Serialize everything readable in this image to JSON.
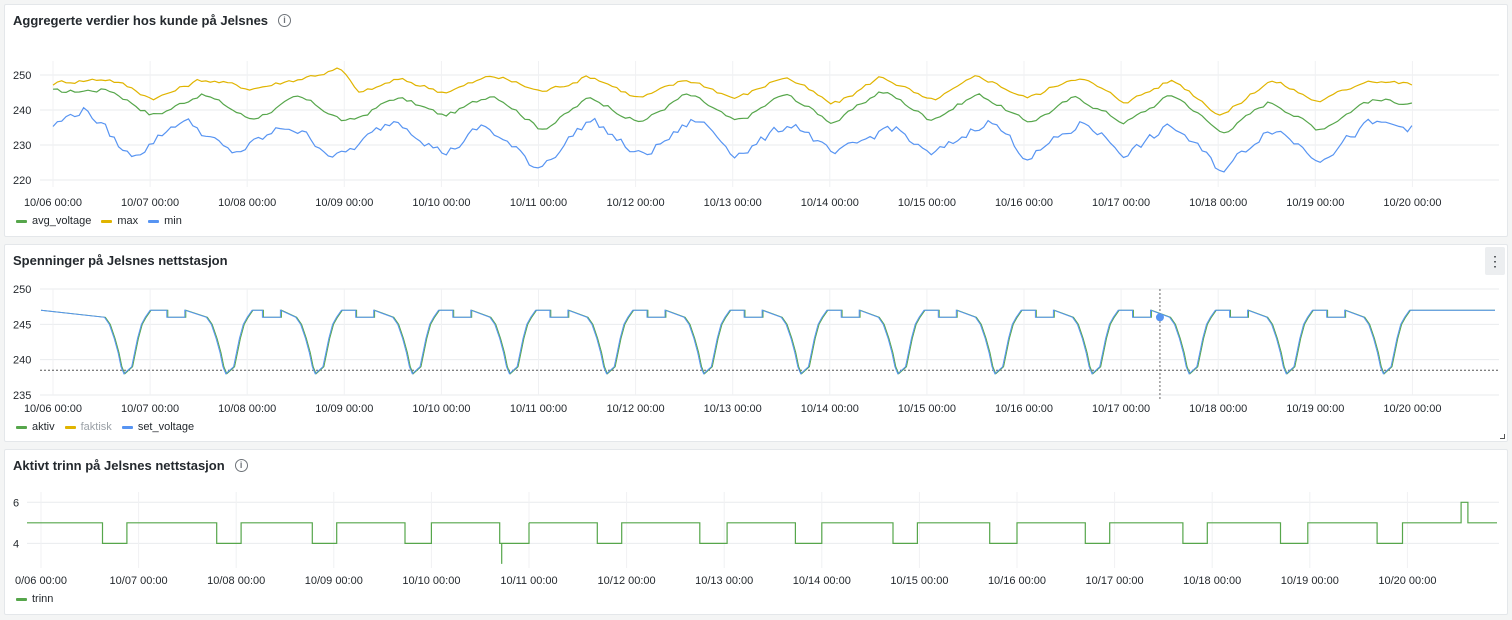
{
  "panels": {
    "p1": {
      "title": "Aggregerte verdier hos kunde på Jelsnes",
      "legend": [
        {
          "label": "avg_voltage",
          "color": "#56a64b"
        },
        {
          "label": "max",
          "color": "#e0b400"
        },
        {
          "label": "min",
          "color": "#5794f2"
        }
      ]
    },
    "p2": {
      "title": "Spenninger på Jelsnes nettstasjon",
      "menu_icon": "⋮",
      "legend": [
        {
          "label": "aktiv",
          "color": "#56a64b"
        },
        {
          "label": "faktisk",
          "color": "#e0b400",
          "dimmed": true
        },
        {
          "label": "set_voltage",
          "color": "#5794f2"
        }
      ]
    },
    "p3": {
      "title": "Aktivt trinn på Jelsnes nettstasjon",
      "legend": [
        {
          "label": "trinn",
          "color": "#56a64b"
        }
      ]
    }
  },
  "chart_data": [
    {
      "type": "line",
      "title": "Aggregerte verdier hos kunde på Jelsnes",
      "x_ticks": [
        "10/06 00:00",
        "10/07 00:00",
        "10/08 00:00",
        "10/09 00:00",
        "10/10 00:00",
        "10/11 00:00",
        "10/12 00:00",
        "10/13 00:00",
        "10/14 00:00",
        "10/15 00:00",
        "10/16 00:00",
        "10/17 00:00",
        "10/18 00:00",
        "10/19 00:00",
        "10/20 00:00"
      ],
      "y_ticks": [
        220,
        230,
        240,
        250
      ],
      "ylim": [
        218,
        254
      ],
      "legend_placement": "bottom-left",
      "series": [
        {
          "name": "avg_voltage",
          "color": "#56a64b",
          "day_values": [
            [
              0,
              245
            ],
            [
              0.55,
              246
            ],
            [
              1.0,
              238
            ],
            [
              1.5,
              245
            ],
            [
              2.0,
              237
            ],
            [
              2.5,
              244
            ],
            [
              3.0,
              236
            ],
            [
              3.5,
              244
            ],
            [
              4.0,
              238
            ],
            [
              4.5,
              245
            ],
            [
              5.0,
              234
            ],
            [
              5.5,
              244
            ],
            [
              6.0,
              236
            ],
            [
              6.5,
              245
            ],
            [
              7.0,
              236
            ],
            [
              7.5,
              245
            ],
            [
              8.0,
              236
            ],
            [
              8.5,
              246
            ],
            [
              9.0,
              237
            ],
            [
              9.5,
              245
            ],
            [
              10.0,
              236
            ],
            [
              10.5,
              244
            ],
            [
              11.0,
              236
            ],
            [
              11.5,
              245
            ],
            [
              12.0,
              233
            ],
            [
              12.5,
              243
            ],
            [
              13.0,
              234
            ],
            [
              13.5,
              243
            ],
            [
              14.0,
              242
            ]
          ]
        },
        {
          "name": "max",
          "color": "#e0b400",
          "day_values": [
            [
              0,
              248
            ],
            [
              0.55,
              249
            ],
            [
              1.0,
              243
            ],
            [
              1.5,
              249
            ],
            [
              2.0,
              246
            ],
            [
              2.5,
              249
            ],
            [
              2.95,
              252
            ],
            [
              3.1,
              244
            ],
            [
              3.5,
              249
            ],
            [
              4.0,
              245
            ],
            [
              4.5,
              250
            ],
            [
              5.0,
              245
            ],
            [
              5.5,
              250
            ],
            [
              6.0,
              243
            ],
            [
              6.5,
              249
            ],
            [
              7.0,
              243
            ],
            [
              7.5,
              250
            ],
            [
              8.0,
              241
            ],
            [
              8.5,
              250
            ],
            [
              9.0,
              242
            ],
            [
              9.5,
              250
            ],
            [
              10.0,
              243
            ],
            [
              10.5,
              250
            ],
            [
              11.0,
              242
            ],
            [
              11.5,
              249
            ],
            [
              12.0,
              238
            ],
            [
              12.5,
              249
            ],
            [
              13.0,
              242
            ],
            [
              13.5,
              249
            ],
            [
              14.0,
              247
            ]
          ]
        },
        {
          "name": "min",
          "color": "#5794f2",
          "day_values": [
            [
              0,
              236
            ],
            [
              0.3,
              241
            ],
            [
              0.75,
              226
            ],
            [
              1.3,
              238
            ],
            [
              1.8,
              227
            ],
            [
              2.4,
              236
            ],
            [
              2.9,
              226
            ],
            [
              3.5,
              238
            ],
            [
              4.0,
              227
            ],
            [
              4.4,
              236
            ],
            [
              4.95,
              223
            ],
            [
              5.5,
              238
            ],
            [
              6.0,
              226
            ],
            [
              6.6,
              238
            ],
            [
              7.0,
              227
            ],
            [
              7.6,
              237
            ],
            [
              8.0,
              226
            ],
            [
              8.6,
              236
            ],
            [
              9.0,
              226
            ],
            [
              9.6,
              238
            ],
            [
              10.0,
              226
            ],
            [
              10.6,
              237
            ],
            [
              11.0,
              227
            ],
            [
              11.5,
              236
            ],
            [
              12.0,
              222
            ],
            [
              12.5,
              236
            ],
            [
              13.0,
              226
            ],
            [
              13.5,
              236
            ],
            [
              14.0,
              235
            ]
          ]
        }
      ]
    },
    {
      "type": "line",
      "title": "Spenninger på Jelsnes nettstasjon",
      "x_ticks": [
        "10/06 00:00",
        "10/07 00:00",
        "10/08 00:00",
        "10/09 00:00",
        "10/10 00:00",
        "10/11 00:00",
        "10/12 00:00",
        "10/13 00:00",
        "10/14 00:00",
        "10/15 00:00",
        "10/16 00:00",
        "10/17 00:00",
        "10/18 00:00",
        "10/19 00:00",
        "10/20 00:00"
      ],
      "y_ticks": [
        235,
        240,
        245,
        250
      ],
      "ylim": [
        235,
        250
      ],
      "threshold_line": 238.5,
      "hover_point": {
        "x_day": 11.4,
        "y": 246
      },
      "legend_placement": "bottom-left",
      "series": [
        {
          "name": "aktiv",
          "color": "#56a64b"
        },
        {
          "name": "faktisk",
          "color": "#e0b400"
        },
        {
          "name": "set_voltage",
          "color": "#5794f2",
          "plateau": 247,
          "trough": 238,
          "trough_days": [
            0.75,
            1.8,
            2.72,
            3.72,
            4.72,
            5.72,
            6.72,
            7.72,
            8.72,
            9.72,
            10.72,
            11.72,
            12.72,
            13.72
          ]
        }
      ]
    },
    {
      "type": "line",
      "title": "Aktivt trinn på Jelsnes nettstasjon",
      "x_ticks": [
        "0/06 00:00",
        "10/07 00:00",
        "10/08 00:00",
        "10/09 00:00",
        "10/10 00:00",
        "10/11 00:00",
        "10/12 00:00",
        "10/13 00:00",
        "10/14 00:00",
        "10/15 00:00",
        "10/16 00:00",
        "10/17 00:00",
        "10/18 00:00",
        "10/19 00:00",
        "10/20 00:00"
      ],
      "y_ticks": [
        4,
        6
      ],
      "ylim": [
        2.8,
        6.5
      ],
      "legend_placement": "bottom-left",
      "series": [
        {
          "name": "trinn",
          "color": "#56a64b",
          "high": 5,
          "low": 4,
          "low_intervals": [
            [
              0.63,
              0.88
            ],
            [
              1.8,
              2.05
            ],
            [
              2.78,
              3.03
            ],
            [
              3.73,
              4.0
            ],
            [
              4.7,
              5.0
            ],
            [
              5.7,
              5.95
            ],
            [
              6.75,
              7.03
            ],
            [
              7.73,
              8.0
            ],
            [
              8.73,
              8.98
            ],
            [
              9.72,
              10.0
            ],
            [
              10.7,
              10.95
            ],
            [
              11.7,
              11.95
            ],
            [
              12.7,
              12.98
            ],
            [
              13.69,
              13.95
            ]
          ],
          "spike_down": {
            "x_day": 4.72,
            "y": 3
          },
          "spike_up": {
            "from": 14.55,
            "to": 14.62,
            "y": 6
          }
        }
      ]
    }
  ]
}
